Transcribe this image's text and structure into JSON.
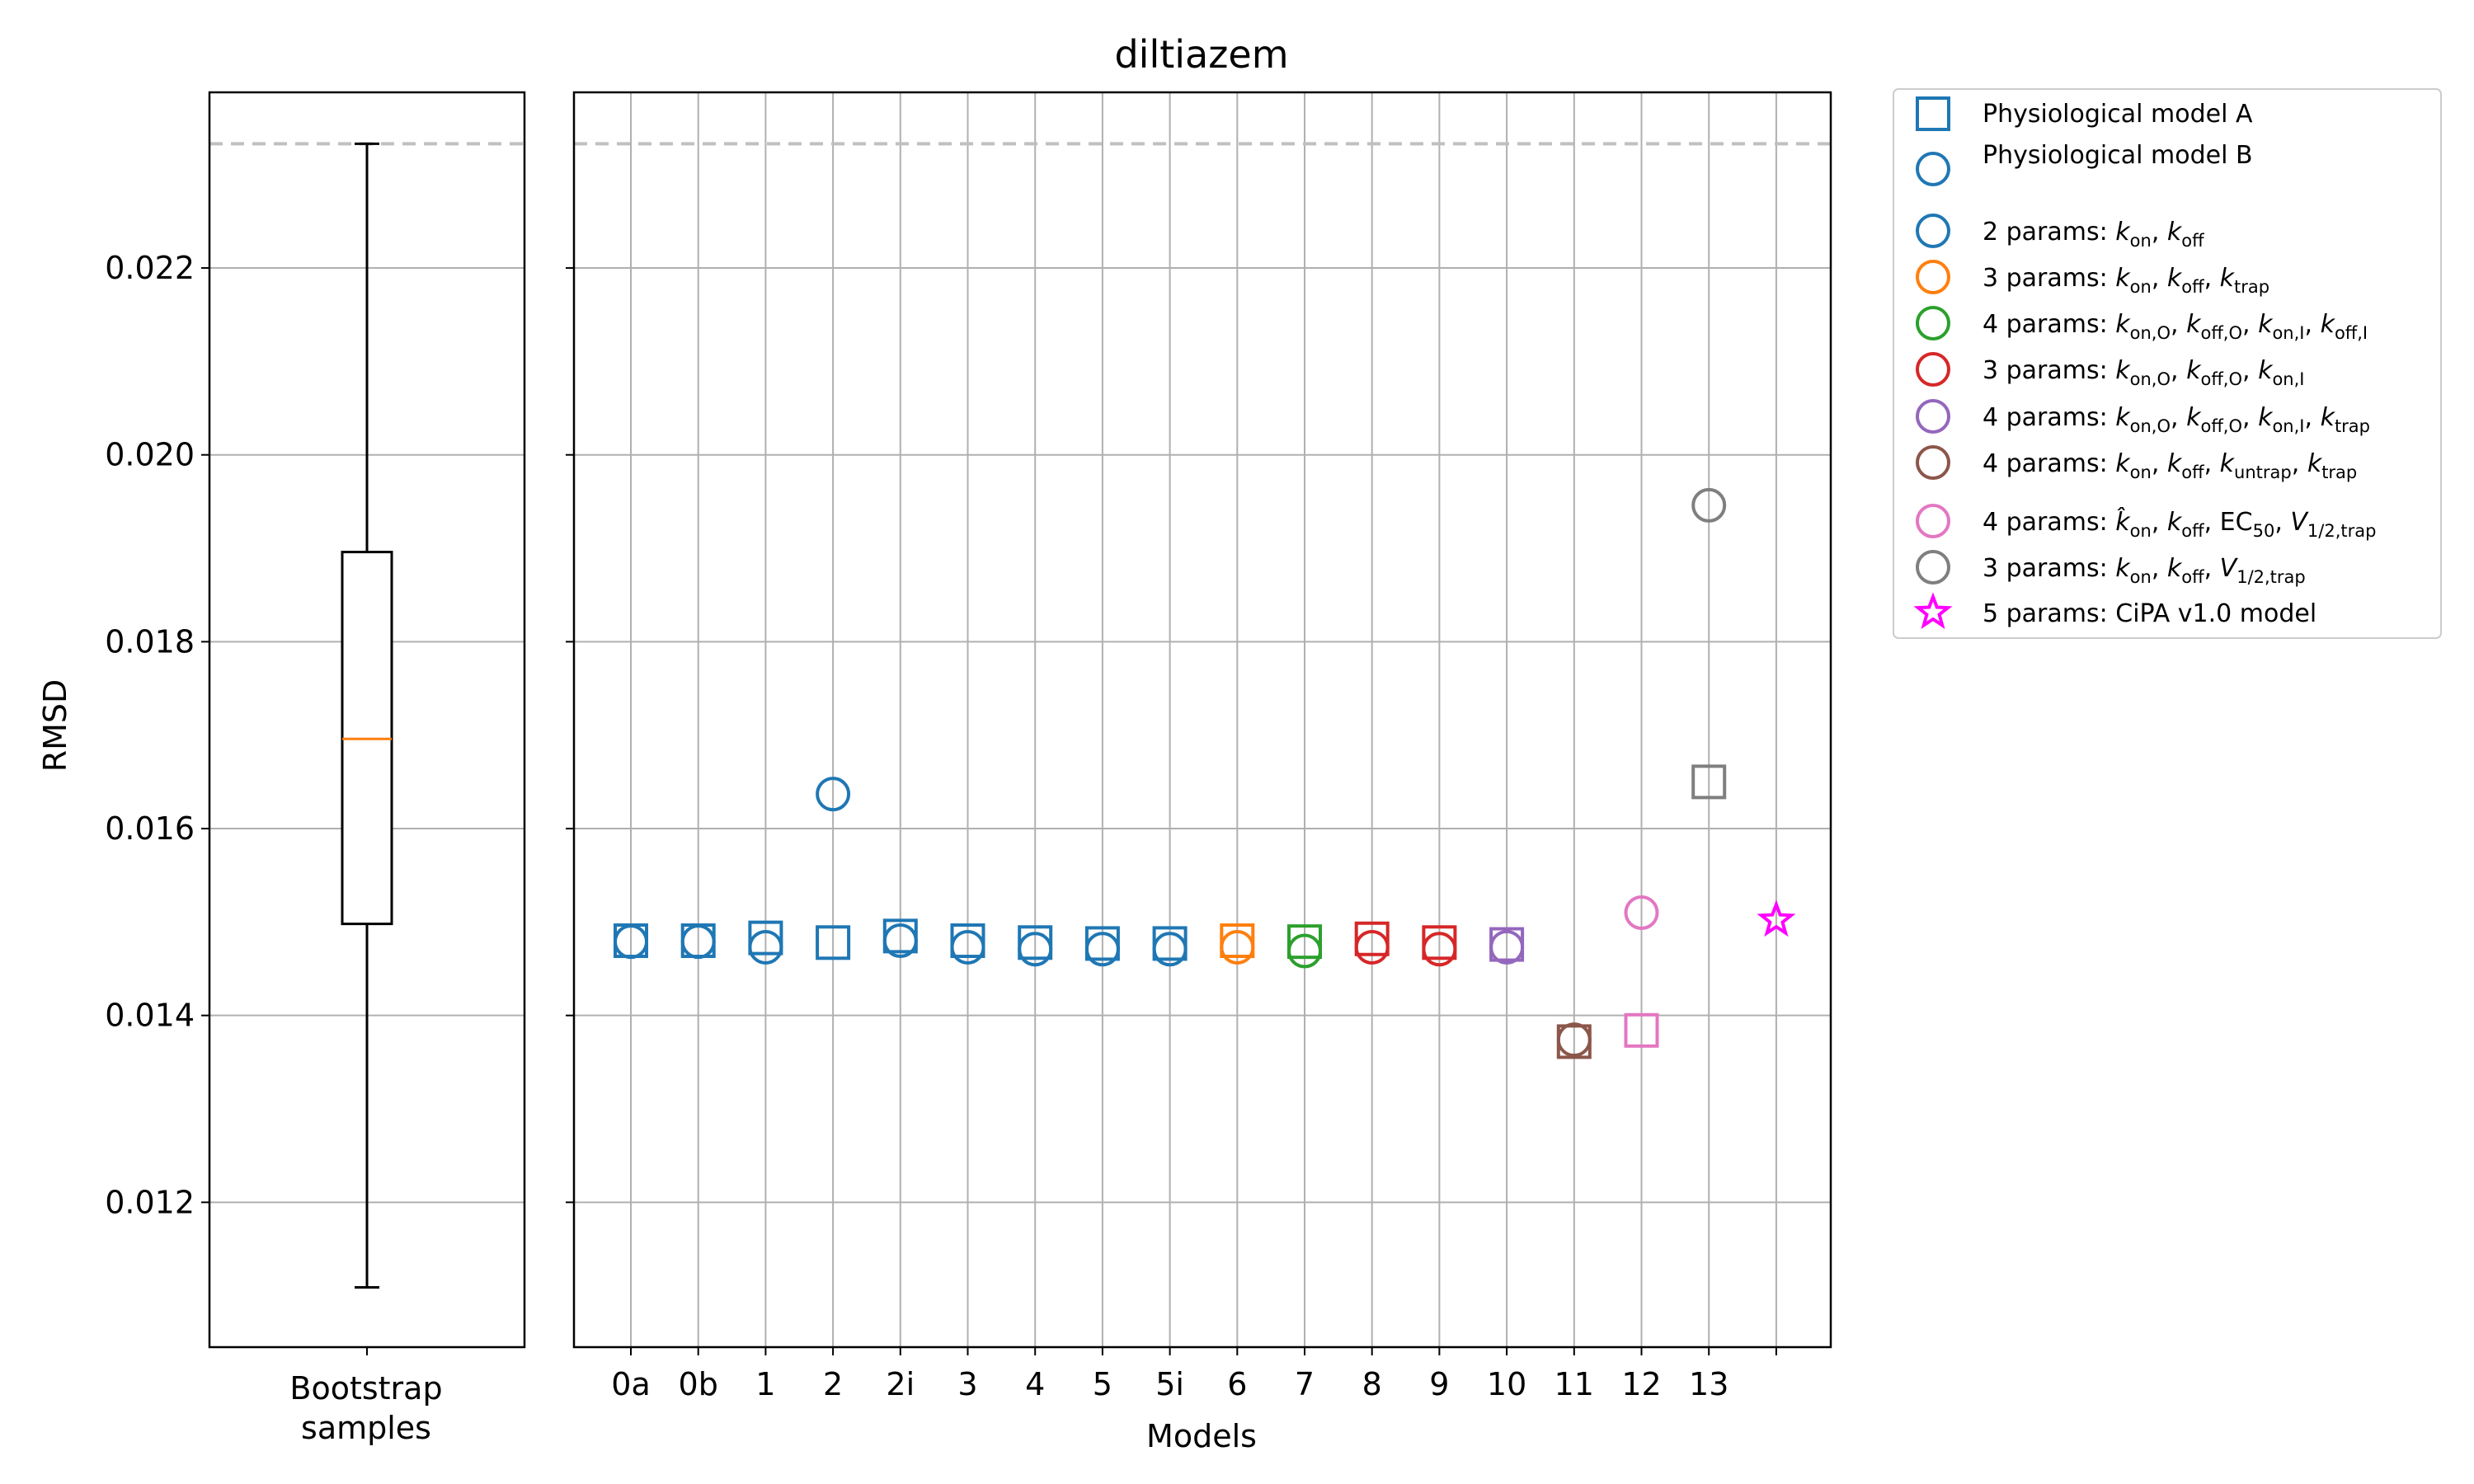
{
  "chart_data": {
    "title": "diltiazem",
    "ylabel": "RMSD",
    "ylim": [
      0.01045,
      0.02388
    ],
    "yticks": [
      {
        "value": 0.012,
        "label": "0.012"
      },
      {
        "value": 0.014,
        "label": "0.014"
      },
      {
        "value": 0.016,
        "label": "0.016"
      },
      {
        "value": 0.018,
        "label": "0.018"
      },
      {
        "value": 0.02,
        "label": "0.020"
      },
      {
        "value": 0.022,
        "label": "0.022"
      }
    ],
    "reference_line": 0.02333,
    "grid": true,
    "legend_position": "outside right, top",
    "boxplot": {
      "type": "box",
      "xlabel_line1": "Bootstrap",
      "xlabel_line2": "samples",
      "whisker_low": 0.01109,
      "q1": 0.01498,
      "median": 0.01696,
      "q3": 0.01896,
      "whisker_high": 0.02333,
      "median_color": "#ff7f0e"
    },
    "scatter": {
      "type": "scatter",
      "xlabel": "Models",
      "categories": [
        "0a",
        "0b",
        "1",
        "2",
        "2i",
        "3",
        "4",
        "5",
        "5i",
        "6",
        "7",
        "8",
        "9",
        "10",
        "11",
        "12",
        "13",
        ""
      ],
      "series": [
        {
          "name": "Physiological model A",
          "marker": "square",
          "values": [
            0.0148,
            0.0148,
            0.01483,
            0.01478,
            0.01485,
            0.0148,
            0.01478,
            0.01477,
            0.01477,
            0.0148,
            0.01479,
            0.01482,
            0.01478,
            0.01476,
            0.01372,
            0.01384,
            0.0165,
            null
          ]
        },
        {
          "name": "Physiological model B",
          "marker": "circle",
          "values": [
            0.01479,
            0.01479,
            0.01473,
            0.01637,
            0.0148,
            0.01473,
            0.01471,
            0.01471,
            0.01471,
            0.01473,
            0.01469,
            0.01473,
            0.01471,
            0.01473,
            0.01374,
            0.0151,
            0.01946,
            null
          ]
        },
        {
          "name": "5 params: CiPA v1.0 model",
          "marker": "star",
          "values": [
            null,
            null,
            null,
            null,
            null,
            null,
            null,
            null,
            null,
            null,
            null,
            null,
            null,
            null,
            null,
            null,
            null,
            0.01502
          ]
        }
      ],
      "category_colors": [
        "#1f77b4",
        "#1f77b4",
        "#1f77b4",
        "#1f77b4",
        "#1f77b4",
        "#1f77b4",
        "#1f77b4",
        "#1f77b4",
        "#1f77b4",
        "#ff7f0e",
        "#2ca02c",
        "#d62728",
        "#d62728",
        "#9467bd",
        "#8c564b",
        "#e377c2",
        "#7f7f7f",
        "#ff00ff"
      ]
    },
    "legend": [
      {
        "marker": "square",
        "color": "#1f77b4",
        "text": "Physiological model A"
      },
      {
        "marker": "circle",
        "color": "#1f77b4",
        "text": "Physiological model B"
      },
      {
        "marker": "circle",
        "color": "#1f77b4",
        "prefix": "2 params: ",
        "math": "k_on, k_off"
      },
      {
        "marker": "circle",
        "color": "#ff7f0e",
        "prefix": "3 params: ",
        "math": "k_on, k_off, k_trap"
      },
      {
        "marker": "circle",
        "color": "#2ca02c",
        "prefix": "4 params: ",
        "math": "k_on,O, k_off,O, k_on,I, k_off,I"
      },
      {
        "marker": "circle",
        "color": "#d62728",
        "prefix": "3 params: ",
        "math": "k_on,O, k_off,O, k_on,I"
      },
      {
        "marker": "circle",
        "color": "#9467bd",
        "prefix": "4 params: ",
        "math": "k_on,O, k_off,O, k_on,I, k_trap"
      },
      {
        "marker": "circle",
        "color": "#8c564b",
        "prefix": "4 params: ",
        "math": "k_on, k_off, k_untrap, k_trap"
      },
      {
        "marker": "circle",
        "color": "#e377c2",
        "prefix": "4 params: ",
        "math": "k̂_on, k_off, EC_50, V_1/2,trap"
      },
      {
        "marker": "circle",
        "color": "#7f7f7f",
        "prefix": "3 params: ",
        "math": "k_on, k_off, V_1/2,trap"
      },
      {
        "marker": "star",
        "color": "#ff00ff",
        "text": "5 params: CiPA v1.0 model"
      }
    ]
  }
}
